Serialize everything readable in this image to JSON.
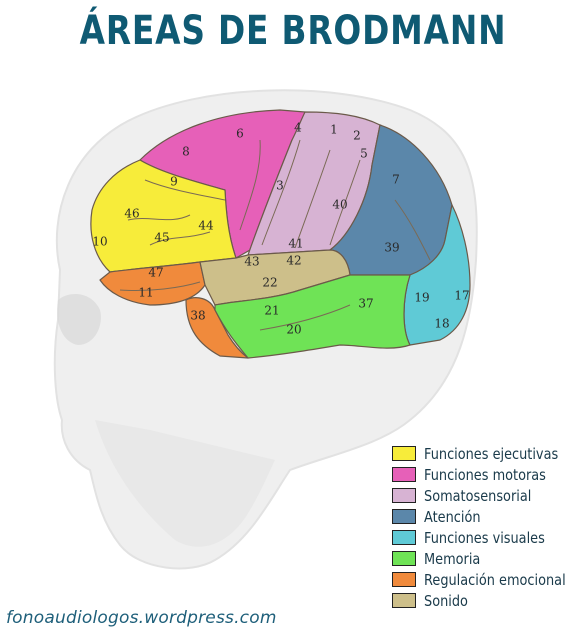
{
  "title": "ÁREAS DE BRODMANN",
  "colors": {
    "ejecutivas": "#f7ec3a",
    "motoras": "#e660b8",
    "somatosensorial": "#d7b3d3",
    "atencion": "#5b87aa",
    "visuales": "#5fcad6",
    "memoria": "#6fe356",
    "emocional": "#f08a3c",
    "sonido": "#cdbf8a",
    "title": "#0f5a73"
  },
  "areas": {
    "a1": "1",
    "a2": "2",
    "a3": "3",
    "a4": "4",
    "a5": "5",
    "a6": "6",
    "a7": "7",
    "a8": "8",
    "a9": "9",
    "a10": "10",
    "a11": "11",
    "a17": "17",
    "a18": "18",
    "a19": "19",
    "a20": "20",
    "a21": "21",
    "a22": "22",
    "a37": "37",
    "a38": "38",
    "a39": "39",
    "a40": "40",
    "a41": "41",
    "a42": "42",
    "a43": "43",
    "a44": "44",
    "a45": "45",
    "a46": "46",
    "a47": "47"
  },
  "legend": [
    {
      "label": "Funciones ejecutivas",
      "color": "#f7ec3a"
    },
    {
      "label": "Funciones motoras",
      "color": "#e660b8"
    },
    {
      "label": "Somatosensorial",
      "color": "#d7b3d3"
    },
    {
      "label": "Atención",
      "color": "#5b87aa"
    },
    {
      "label": "Funciones visuales",
      "color": "#5fcad6"
    },
    {
      "label": "Memoria",
      "color": "#6fe356"
    },
    {
      "label": "Regulación emocional",
      "color": "#f08a3c"
    },
    {
      "label": "Sonido",
      "color": "#cdbf8a"
    }
  ],
  "credit": "fonoaudiologos.wordpress.com"
}
